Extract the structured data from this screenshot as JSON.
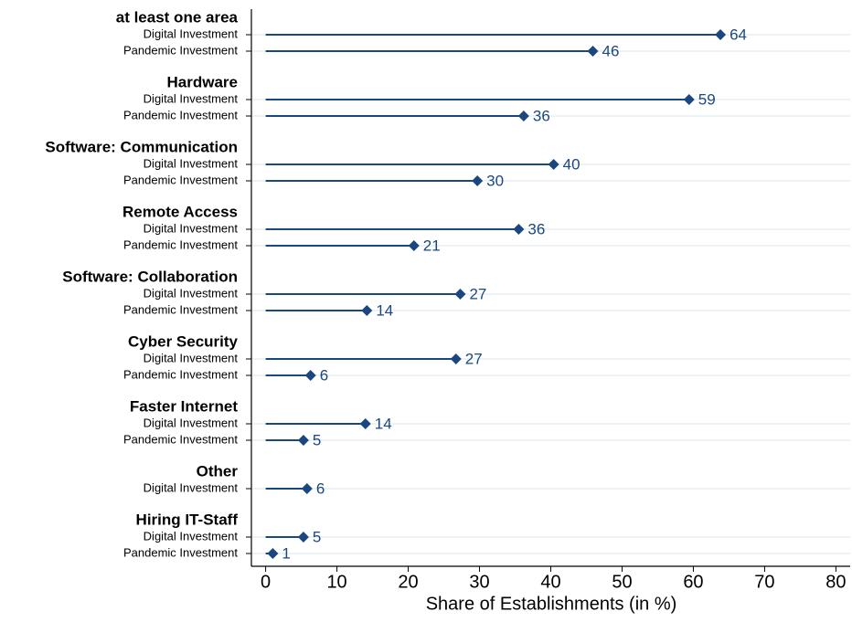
{
  "chart_data": {
    "type": "dot",
    "xlabel": "Share of Establishments (in %)",
    "categories": [
      "at least one area",
      "Hardware",
      "Software: Communication",
      "Remote Access",
      "Software: Collaboration",
      "Cyber Security",
      "Faster Internet",
      "Other",
      "Hiring IT-Staff"
    ],
    "series": [
      {
        "name": "Digital Investment",
        "color": "#1a4780",
        "values": [
          63.8,
          59.4,
          40.4,
          35.5,
          27.3,
          26.7,
          14.0,
          5.8,
          5.3
        ],
        "value_labels": [
          "64",
          "59",
          "40",
          "36",
          "27",
          "27",
          "14",
          "6",
          "5"
        ]
      },
      {
        "name": "Pandemic Investment",
        "color": "#1a4780",
        "values": [
          45.9,
          36.2,
          29.7,
          20.8,
          14.2,
          6.3,
          5.3,
          null,
          1.0
        ],
        "value_labels": [
          "46",
          "36",
          "30",
          "21",
          "14",
          "6",
          "5",
          null,
          "1"
        ]
      }
    ],
    "xlim": [
      -2,
      82
    ],
    "xticks": [
      0,
      10,
      20,
      30,
      40,
      50,
      60,
      70,
      80
    ],
    "grid": true
  }
}
